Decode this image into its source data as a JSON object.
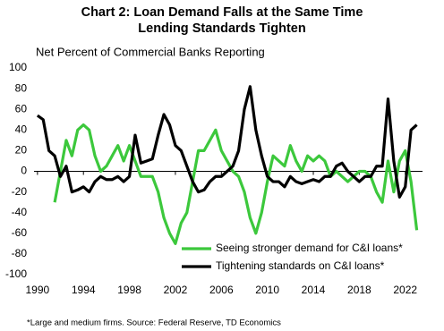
{
  "chart_data": {
    "type": "line",
    "title": [
      "Chart 2: Loan Demand Falls at the Same Time",
      "Lending Standards Tighten"
    ],
    "subtitle": "Net Percent of Commercial Banks Reporting",
    "footnote": "*Large and medium  firms. Source: Federal Reserve, TD Economics",
    "x": [
      1990,
      1990.5,
      1991,
      1991.5,
      1992,
      1992.5,
      1993,
      1993.5,
      1994,
      1994.5,
      1995,
      1995.5,
      1996,
      1996.5,
      1997,
      1997.5,
      1998,
      1998.5,
      1999,
      1999.5,
      2000,
      2000.5,
      2001,
      2001.5,
      2002,
      2002.5,
      2003,
      2003.5,
      2004,
      2004.5,
      2005,
      2005.5,
      2006,
      2006.5,
      2007,
      2007.5,
      2008,
      2008.5,
      2009,
      2009.5,
      2010,
      2010.5,
      2011,
      2011.5,
      2012,
      2012.5,
      2013,
      2013.5,
      2014,
      2014.5,
      2015,
      2015.5,
      2016,
      2016.5,
      2017,
      2017.5,
      2018,
      2018.5,
      2019,
      2019.5,
      2020,
      2020.5,
      2021,
      2021.5,
      2022,
      2022.5,
      2023
    ],
    "series": [
      {
        "name": "Seeing stronger demand for C&I loans*",
        "color": "#3cc83c",
        "values": [
          null,
          null,
          null,
          -30,
          0,
          30,
          15,
          40,
          45,
          40,
          15,
          0,
          5,
          15,
          25,
          10,
          25,
          10,
          -5,
          -5,
          -5,
          -20,
          -45,
          -60,
          -70,
          -50,
          -40,
          -10,
          20,
          20,
          30,
          40,
          20,
          10,
          0,
          -5,
          -20,
          -45,
          -60,
          -40,
          -10,
          15,
          10,
          5,
          25,
          10,
          0,
          15,
          10,
          15,
          10,
          -5,
          0,
          -5,
          -10,
          -5,
          0,
          0,
          -5,
          -20,
          -30,
          10,
          -20,
          10,
          20,
          -10,
          -57
        ]
      },
      {
        "name": "Tightening standards on C&I loans*",
        "color": "#000000",
        "values": [
          54,
          50,
          20,
          15,
          -5,
          5,
          -20,
          -18,
          -15,
          -20,
          -10,
          -5,
          -8,
          -8,
          -5,
          -10,
          -5,
          35,
          8,
          10,
          12,
          35,
          55,
          45,
          25,
          20,
          5,
          -10,
          -20,
          -18,
          -10,
          -5,
          -5,
          0,
          5,
          20,
          60,
          82,
          40,
          15,
          -5,
          -10,
          -10,
          -15,
          -5,
          -10,
          -12,
          -10,
          -8,
          -10,
          -5,
          -5,
          5,
          8,
          0,
          -5,
          -10,
          -5,
          -5,
          5,
          5,
          70,
          10,
          -25,
          -15,
          40,
          45
        ]
      }
    ],
    "xlim": [
      1989.7,
      2023.5
    ],
    "xticks": [
      1990,
      1994,
      1998,
      2002,
      2006,
      2010,
      2014,
      2018,
      2022
    ],
    "ylim": [
      -100,
      100
    ],
    "yticks": [
      -100,
      -80,
      -60,
      -40,
      -20,
      0,
      20,
      40,
      60,
      80,
      100
    ],
    "grid": false,
    "legend": "bottom"
  }
}
